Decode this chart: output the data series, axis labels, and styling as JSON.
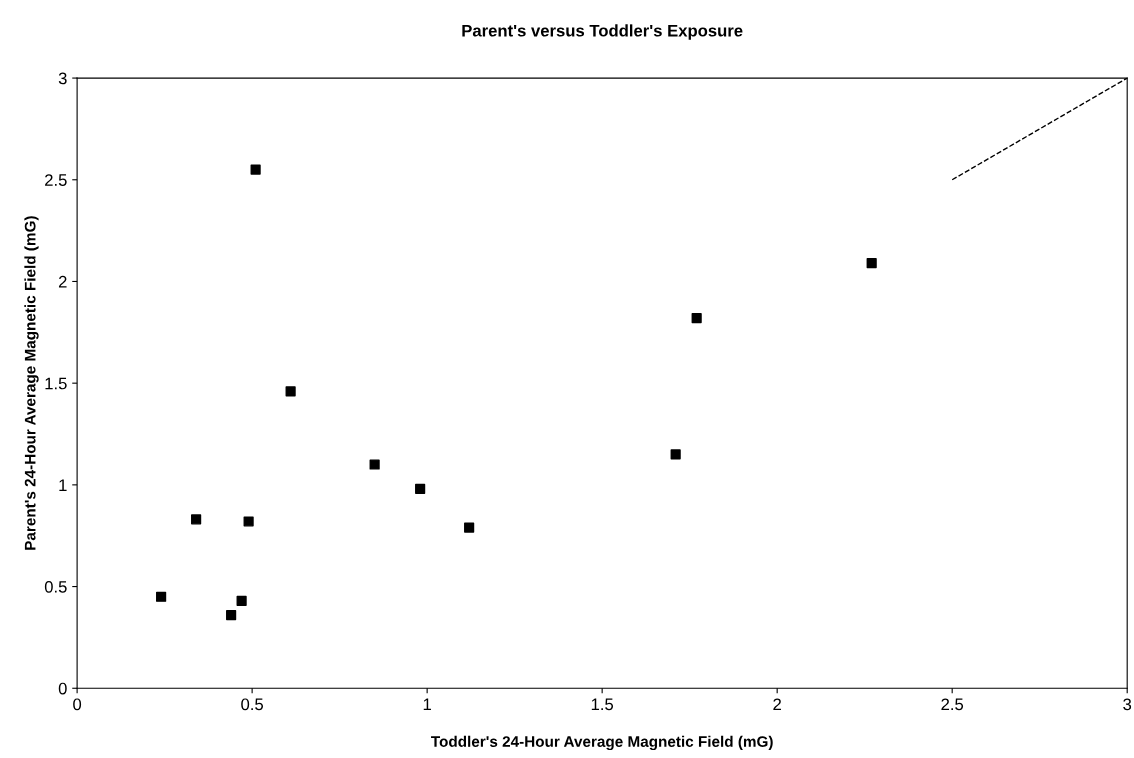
{
  "chart_data": {
    "type": "scatter",
    "title": "Parent's versus Toddler's Exposure",
    "xlabel": "Toddler's 24-Hour Average Magnetic Field (mG)",
    "ylabel": "Parent's 24-Hour Average Magnetic Field (mG)",
    "xlim": [
      0,
      3
    ],
    "ylim": [
      0,
      3
    ],
    "xticks": [
      0,
      0.5,
      1,
      1.5,
      2,
      2.5,
      3
    ],
    "yticks": [
      0,
      0.5,
      1,
      1.5,
      2,
      2.5,
      3
    ],
    "grid": false,
    "series": [
      {
        "marker": "square",
        "color": "#000000",
        "x": [
          0.51,
          0.61,
          0.34,
          0.49,
          0.24,
          0.47,
          0.44,
          0.85,
          0.98,
          1.12,
          1.71,
          1.77,
          2.27
        ],
        "values": [
          2.55,
          1.46,
          0.83,
          0.82,
          0.45,
          0.43,
          0.36,
          1.1,
          0.98,
          0.79,
          1.15,
          1.82,
          2.09
        ]
      },
      {
        "type": "line",
        "color": "#000000",
        "line_style": "dashed",
        "x": [
          2.5,
          3
        ],
        "values": [
          2.5,
          3
        ]
      }
    ]
  }
}
